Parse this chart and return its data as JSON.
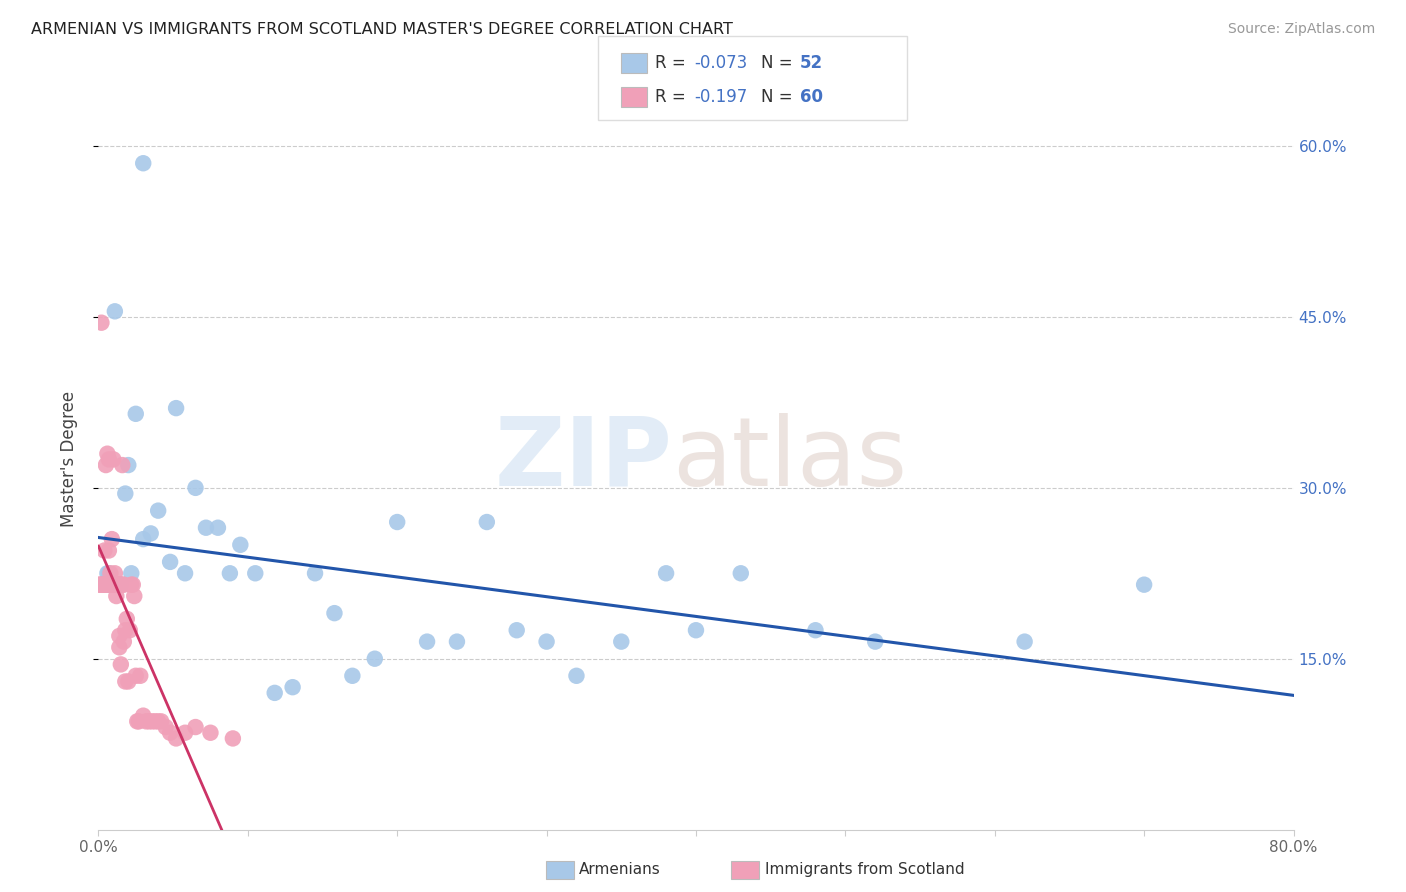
{
  "title": "ARMENIAN VS IMMIGRANTS FROM SCOTLAND MASTER'S DEGREE CORRELATION CHART",
  "source": "Source: ZipAtlas.com",
  "ylabel": "Master's Degree",
  "xlim": [
    0.0,
    0.8
  ],
  "ylim": [
    0.0,
    0.65
  ],
  "xtick_pos": [
    0.0,
    0.1,
    0.2,
    0.3,
    0.4,
    0.5,
    0.6,
    0.7,
    0.8
  ],
  "xtick_labels": [
    "0.0%",
    "",
    "",
    "",
    "",
    "",
    "",
    "",
    "80.0%"
  ],
  "ytick_positions": [
    0.15,
    0.3,
    0.45,
    0.6
  ],
  "ytick_labels": [
    "15.0%",
    "30.0%",
    "45.0%",
    "60.0%"
  ],
  "armenians_R": -0.073,
  "armenians_N": 52,
  "scotland_R": -0.197,
  "scotland_N": 60,
  "armenians_color": "#a8c8e8",
  "scotland_color": "#f0a0b8",
  "armenians_line_color": "#2255aa",
  "scotland_line_color": "#cc3366",
  "armenians_x": [
    0.03,
    0.005,
    0.006,
    0.006,
    0.007,
    0.007,
    0.008,
    0.008,
    0.009,
    0.009,
    0.01,
    0.01,
    0.011,
    0.013,
    0.015,
    0.018,
    0.02,
    0.022,
    0.025,
    0.03,
    0.035,
    0.04,
    0.048,
    0.052,
    0.058,
    0.065,
    0.072,
    0.08,
    0.088,
    0.095,
    0.105,
    0.118,
    0.13,
    0.145,
    0.158,
    0.17,
    0.185,
    0.2,
    0.22,
    0.24,
    0.26,
    0.28,
    0.3,
    0.32,
    0.35,
    0.38,
    0.4,
    0.43,
    0.48,
    0.52,
    0.62,
    0.7
  ],
  "armenians_y": [
    0.585,
    0.215,
    0.225,
    0.215,
    0.225,
    0.215,
    0.215,
    0.215,
    0.215,
    0.215,
    0.215,
    0.215,
    0.455,
    0.215,
    0.215,
    0.295,
    0.32,
    0.225,
    0.365,
    0.255,
    0.26,
    0.28,
    0.235,
    0.37,
    0.225,
    0.3,
    0.265,
    0.265,
    0.225,
    0.25,
    0.225,
    0.12,
    0.125,
    0.225,
    0.19,
    0.135,
    0.15,
    0.27,
    0.165,
    0.165,
    0.27,
    0.175,
    0.165,
    0.135,
    0.165,
    0.225,
    0.175,
    0.225,
    0.175,
    0.165,
    0.165,
    0.215
  ],
  "scotland_x": [
    0.001,
    0.001,
    0.002,
    0.002,
    0.003,
    0.003,
    0.004,
    0.004,
    0.005,
    0.005,
    0.006,
    0.006,
    0.007,
    0.007,
    0.008,
    0.008,
    0.009,
    0.009,
    0.01,
    0.01,
    0.011,
    0.011,
    0.012,
    0.012,
    0.013,
    0.013,
    0.014,
    0.014,
    0.015,
    0.015,
    0.016,
    0.016,
    0.017,
    0.017,
    0.018,
    0.018,
    0.019,
    0.02,
    0.021,
    0.022,
    0.023,
    0.024,
    0.025,
    0.026,
    0.027,
    0.028,
    0.03,
    0.032,
    0.034,
    0.036,
    0.038,
    0.04,
    0.042,
    0.045,
    0.048,
    0.052,
    0.058,
    0.065,
    0.075,
    0.09
  ],
  "scotland_y": [
    0.215,
    0.215,
    0.215,
    0.445,
    0.215,
    0.215,
    0.245,
    0.215,
    0.32,
    0.215,
    0.33,
    0.215,
    0.245,
    0.325,
    0.225,
    0.215,
    0.215,
    0.255,
    0.215,
    0.325,
    0.215,
    0.225,
    0.205,
    0.215,
    0.215,
    0.215,
    0.17,
    0.16,
    0.145,
    0.215,
    0.215,
    0.32,
    0.215,
    0.165,
    0.175,
    0.13,
    0.185,
    0.13,
    0.175,
    0.215,
    0.215,
    0.205,
    0.135,
    0.095,
    0.095,
    0.135,
    0.1,
    0.095,
    0.095,
    0.095,
    0.095,
    0.095,
    0.095,
    0.09,
    0.085,
    0.08,
    0.085,
    0.09,
    0.085,
    0.08
  ]
}
